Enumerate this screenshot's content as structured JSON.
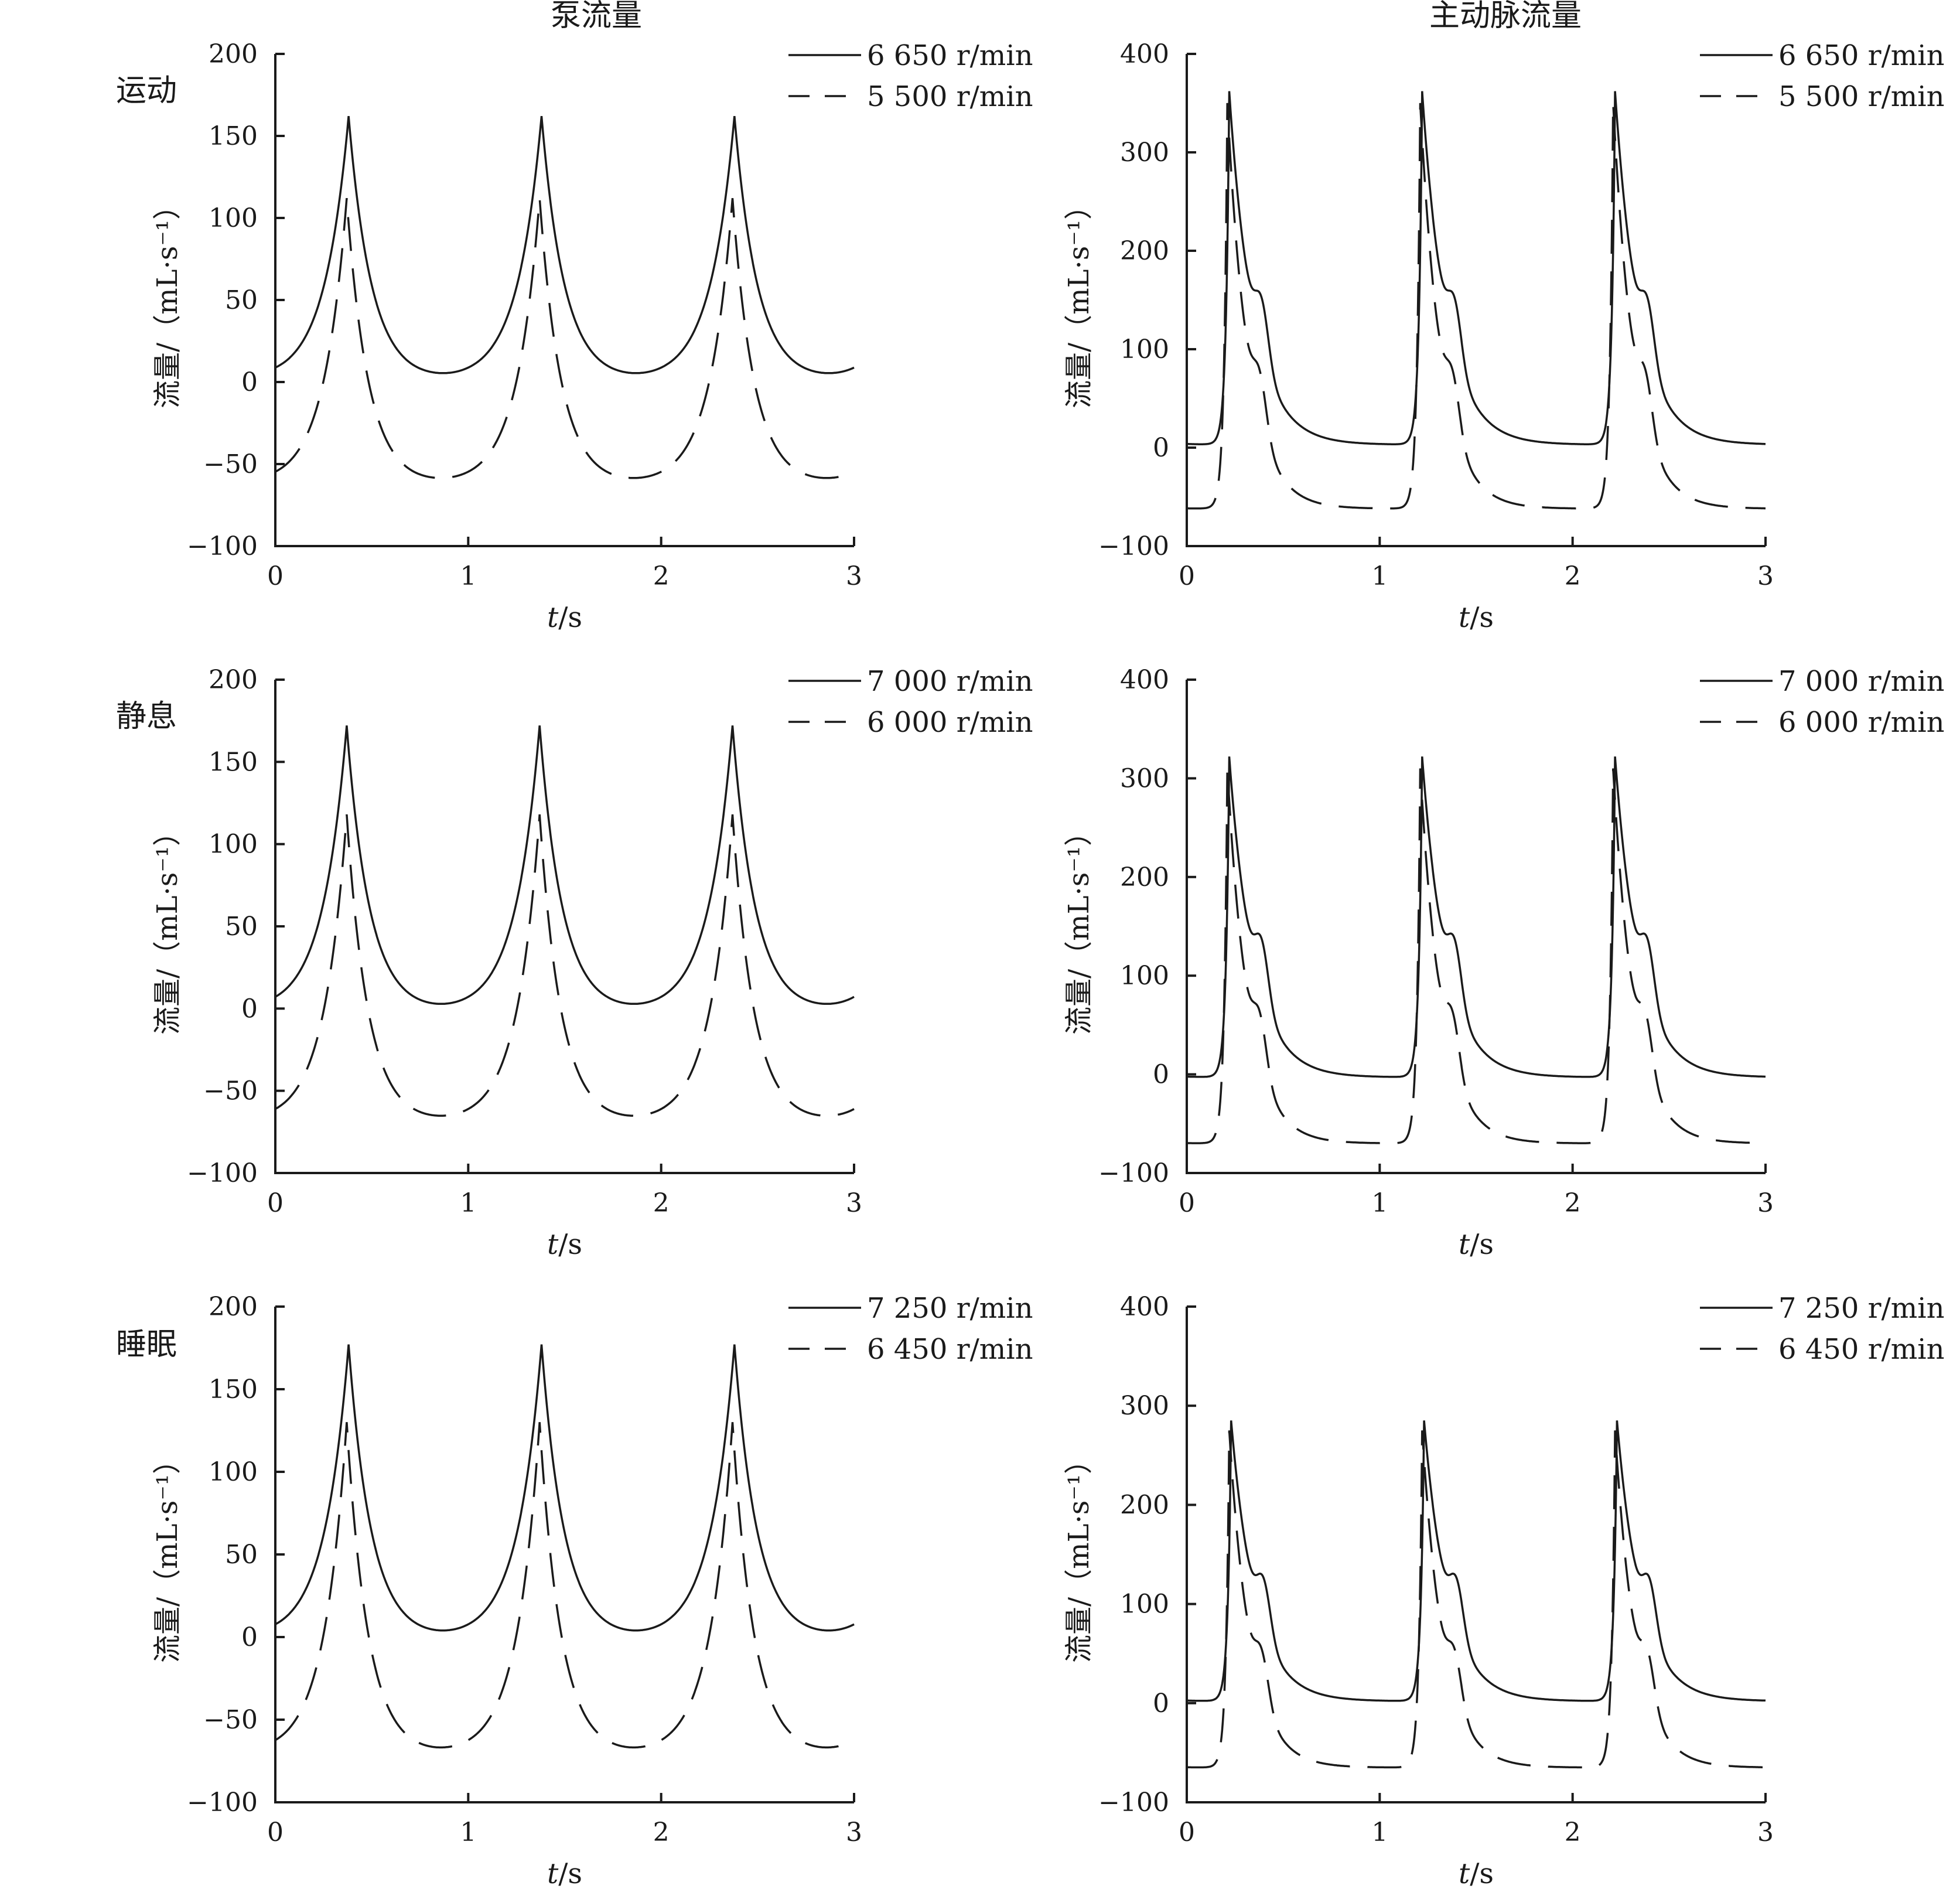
{
  "figure": {
    "column_titles": [
      "泵流量",
      "主动脉流量"
    ],
    "row_titles": [
      "运动",
      "静息",
      "睡眠"
    ],
    "ylabel": "流量/（mL·s⁻¹）",
    "xlabel_italic": "t",
    "xlabel_unit": "/s"
  },
  "chart_data": [
    {
      "type": "line",
      "row": 0,
      "col": 0,
      "xlim": [
        0,
        3
      ],
      "ylim": [
        -100,
        200
      ],
      "xticks": [
        "0",
        "1",
        "2",
        "3"
      ],
      "yticks": [
        "200",
        "150",
        "100",
        "50",
        "0",
        "−50",
        "−100"
      ],
      "legend": "top-right",
      "series": [
        {
          "name": "6 650 r/min",
          "style": "solid",
          "min": 0,
          "peak": 162,
          "peak_t": 0.38,
          "w_rise": 0.17,
          "w_fall": 0.16,
          "notch": 0
        },
        {
          "name": "5 500 r/min",
          "style": "dashed",
          "min": -63,
          "peak": 112,
          "peak_t": 0.37,
          "w_rise": 0.16,
          "w_fall": 0.15,
          "notch": 0
        }
      ]
    },
    {
      "type": "line",
      "row": 0,
      "col": 1,
      "xlim": [
        0,
        3
      ],
      "ylim": [
        -100,
        400
      ],
      "xticks": [
        "0",
        "1",
        "2",
        "3"
      ],
      "yticks": [
        "400",
        "300",
        "200",
        "100",
        "0",
        "−100"
      ],
      "legend": "top-right",
      "series": [
        {
          "name": "6 650 r/min",
          "style": "solid",
          "min": 3,
          "peak": 362,
          "peak_t": 0.22,
          "w_rise": 0.04,
          "w_fall": 0.17,
          "notch": 55
        },
        {
          "name": "5 500 r/min",
          "style": "dashed",
          "min": -62,
          "peak": 350,
          "peak_t": 0.21,
          "w_rise": 0.04,
          "w_fall": 0.15,
          "notch": 50
        }
      ]
    },
    {
      "type": "line",
      "row": 1,
      "col": 0,
      "xlim": [
        0,
        3
      ],
      "ylim": [
        -100,
        200
      ],
      "xticks": [
        "0",
        "1",
        "2",
        "3"
      ],
      "yticks": [
        "200",
        "150",
        "100",
        "50",
        "0",
        "−50",
        "−100"
      ],
      "legend": "top-right",
      "series": [
        {
          "name": "7 000 r/min",
          "style": "solid",
          "min": -3,
          "peak": 172,
          "peak_t": 0.37,
          "w_rise": 0.17,
          "w_fall": 0.16,
          "notch": 0
        },
        {
          "name": "6 000 r/min",
          "style": "dashed",
          "min": -70,
          "peak": 118,
          "peak_t": 0.37,
          "w_rise": 0.16,
          "w_fall": 0.15,
          "notch": 0
        }
      ]
    },
    {
      "type": "line",
      "row": 1,
      "col": 1,
      "xlim": [
        0,
        3
      ],
      "ylim": [
        -100,
        400
      ],
      "xticks": [
        "0",
        "1",
        "2",
        "3"
      ],
      "yticks": [
        "400",
        "300",
        "200",
        "100",
        "0",
        "−100"
      ],
      "legend": "top-right",
      "series": [
        {
          "name": "7 000 r/min",
          "style": "solid",
          "min": -3,
          "peak": 322,
          "peak_t": 0.22,
          "w_rise": 0.04,
          "w_fall": 0.17,
          "notch": 55
        },
        {
          "name": "6 000 r/min",
          "style": "dashed",
          "min": -70,
          "peak": 310,
          "peak_t": 0.21,
          "w_rise": 0.04,
          "w_fall": 0.15,
          "notch": 50
        }
      ]
    },
    {
      "type": "line",
      "row": 2,
      "col": 0,
      "xlim": [
        0,
        3
      ],
      "ylim": [
        -100,
        200
      ],
      "xticks": [
        "0",
        "1",
        "2",
        "3"
      ],
      "yticks": [
        "200",
        "150",
        "100",
        "50",
        "0",
        "−50",
        "−100"
      ],
      "legend": "top-right",
      "series": [
        {
          "name": "7 250 r/min",
          "style": "solid",
          "min": -2,
          "peak": 177,
          "peak_t": 0.38,
          "w_rise": 0.17,
          "w_fall": 0.16,
          "notch": 0
        },
        {
          "name": "6 450 r/min",
          "style": "dashed",
          "min": -72,
          "peak": 130,
          "peak_t": 0.37,
          "w_rise": 0.16,
          "w_fall": 0.15,
          "notch": 0
        }
      ]
    },
    {
      "type": "line",
      "row": 2,
      "col": 1,
      "xlim": [
        0,
        3
      ],
      "ylim": [
        -100,
        400
      ],
      "xticks": [
        "0",
        "1",
        "2",
        "3"
      ],
      "yticks": [
        "400",
        "300",
        "200",
        "100",
        "0",
        "−100"
      ],
      "legend": "top-right",
      "series": [
        {
          "name": "7 250 r/min",
          "style": "solid",
          "min": 2,
          "peak": 285,
          "peak_t": 0.23,
          "w_rise": 0.04,
          "w_fall": 0.17,
          "notch": 50
        },
        {
          "name": "6 450 r/min",
          "style": "dashed",
          "min": -65,
          "peak": 275,
          "peak_t": 0.22,
          "w_rise": 0.04,
          "w_fall": 0.15,
          "notch": 45
        }
      ]
    }
  ]
}
